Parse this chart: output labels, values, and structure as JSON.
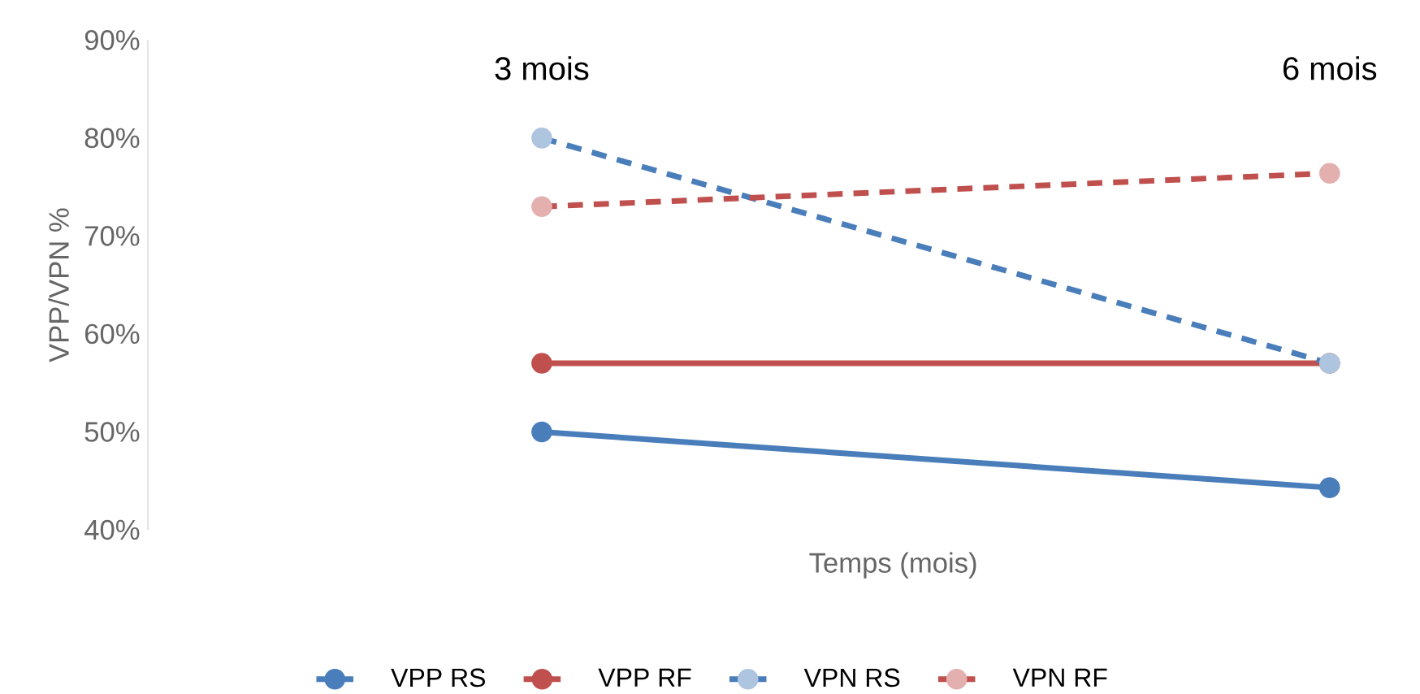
{
  "chart_data": {
    "type": "line",
    "xlabel": "Temps (mois)",
    "ylabel": "VPP/VPN %",
    "categories": [
      "3 mois",
      "6 mois"
    ],
    "series": [
      {
        "name": "VPP RS",
        "color": "#4a7ebb",
        "values": [
          50,
          44.3
        ],
        "line_style": "solid"
      },
      {
        "name": "VPP RF",
        "color": "#c0504d",
        "values": [
          57,
          57
        ],
        "line_style": "solid"
      },
      {
        "name": "VPN RS",
        "color": "#4a7ebb",
        "values": [
          80,
          57
        ],
        "line_style": "dashed"
      },
      {
        "name": "VPN RF",
        "color": "#c0504d",
        "values": [
          73,
          76.4
        ],
        "line_style": "dashed"
      }
    ],
    "ylim": [
      40,
      90
    ],
    "yticks": [
      {
        "value": 40,
        "label": "40%"
      },
      {
        "value": 50,
        "label": "50%"
      },
      {
        "value": 60,
        "label": "60%"
      },
      {
        "value": 70,
        "label": "70%"
      },
      {
        "value": 80,
        "label": "80%"
      },
      {
        "value": 90,
        "label": "90%"
      }
    ],
    "marker": "circle",
    "legend": "bottom",
    "grid": false
  }
}
